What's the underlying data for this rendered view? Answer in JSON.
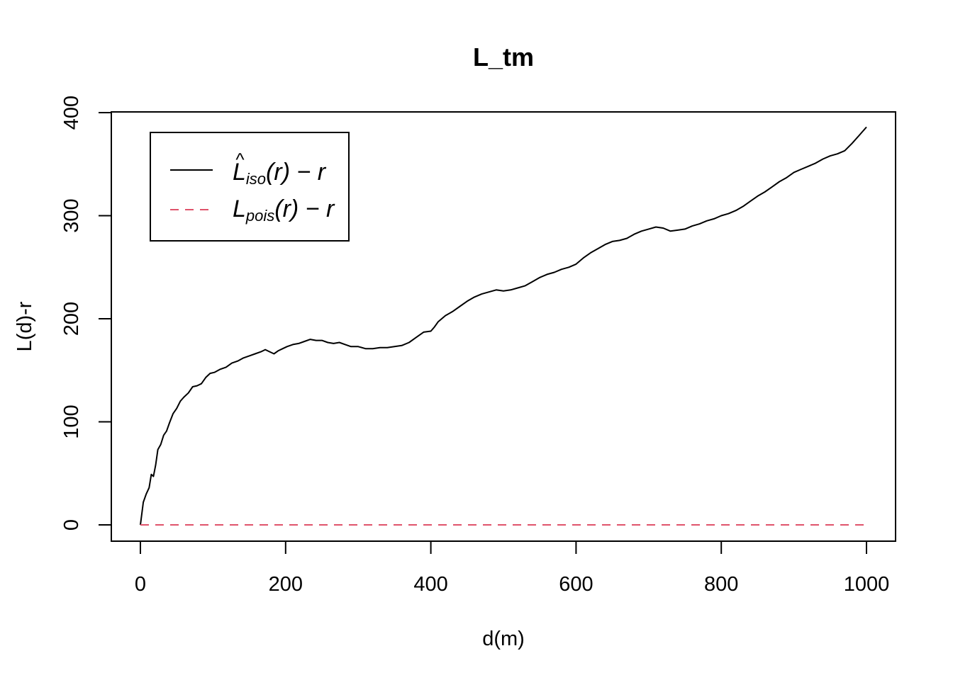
{
  "chart_data": {
    "type": "line",
    "title": "L_tm",
    "xlabel": "d(m)",
    "ylabel": "L(d)-r",
    "xlim": [
      0,
      1000
    ],
    "ylim": [
      0,
      400
    ],
    "x_ticks": [
      0,
      200,
      400,
      600,
      800,
      1000
    ],
    "y_ticks": [
      0,
      100,
      200,
      300,
      400
    ],
    "grid": false,
    "legend_position": "top-left",
    "series": [
      {
        "name_main": "L",
        "name_hat": "^",
        "name_sub": "iso",
        "name_tail": "(r) − r",
        "color": "#000000",
        "dash": "solid",
        "x": [
          0,
          4,
          8,
          12,
          15,
          18,
          21,
          24,
          28,
          32,
          36,
          40,
          45,
          50,
          55,
          60,
          66,
          72,
          78,
          84,
          90,
          96,
          102,
          110,
          118,
          126,
          134,
          142,
          150,
          158,
          166,
          172,
          178,
          184,
          190,
          196,
          202,
          210,
          218,
          226,
          234,
          242,
          250,
          258,
          266,
          274,
          282,
          290,
          300,
          310,
          320,
          330,
          340,
          350,
          360,
          370,
          380,
          390,
          400,
          405,
          410,
          420,
          430,
          440,
          450,
          460,
          470,
          480,
          490,
          500,
          510,
          520,
          530,
          540,
          550,
          560,
          570,
          580,
          590,
          600,
          610,
          620,
          630,
          640,
          650,
          660,
          670,
          680,
          690,
          700,
          710,
          720,
          730,
          740,
          750,
          760,
          770,
          780,
          790,
          800,
          810,
          820,
          830,
          840,
          850,
          860,
          870,
          880,
          890,
          900,
          910,
          920,
          930,
          940,
          950,
          960,
          970,
          980,
          990,
          1000
        ],
        "y": [
          0,
          22,
          30,
          36,
          49,
          47,
          58,
          73,
          78,
          87,
          91,
          99,
          108,
          113,
          120,
          124,
          128,
          134,
          135,
          137,
          143,
          147,
          148,
          151,
          153,
          157,
          159,
          162,
          164,
          166,
          168,
          170,
          168,
          166,
          169,
          171,
          173,
          175,
          176,
          178,
          180,
          179,
          179,
          177,
          176,
          177,
          175,
          173,
          173,
          171,
          171,
          172,
          172,
          173,
          174,
          177,
          182,
          187,
          188,
          192,
          197,
          203,
          207,
          212,
          217,
          221,
          224,
          226,
          228,
          227,
          228,
          230,
          232,
          236,
          240,
          243,
          245,
          248,
          250,
          253,
          259,
          264,
          268,
          272,
          275,
          276,
          278,
          282,
          285,
          287,
          289,
          288,
          285,
          286,
          287,
          290,
          292,
          295,
          297,
          300,
          302,
          305,
          309,
          314,
          319,
          323,
          328,
          333,
          337,
          342,
          345,
          348,
          351,
          355,
          358,
          360,
          363,
          370,
          378,
          386
        ]
      },
      {
        "name_main": "L",
        "name_hat": "",
        "name_sub": "pois",
        "name_tail": "(r) − r",
        "color": "#df536b",
        "dash": "dashed",
        "x": [
          0,
          1000
        ],
        "y": [
          0,
          0
        ]
      }
    ]
  }
}
